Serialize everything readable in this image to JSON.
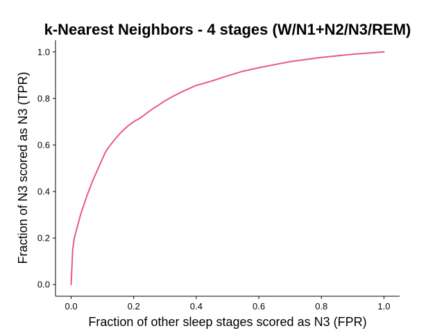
{
  "chart_data": {
    "type": "line",
    "title": "k-Nearest Neighbors - 4 stages (W/N1+N2/N3/REM)",
    "xlabel": "Fraction of other sleep stages scored as N3 (FPR)",
    "ylabel": "Fraction of N3 scored as N3 (TPR)",
    "xlim": [
      -0.05,
      1.05
    ],
    "ylim": [
      -0.05,
      1.05
    ],
    "xticks": [
      0.0,
      0.2,
      0.4,
      0.6,
      0.8,
      1.0
    ],
    "yticks": [
      0.0,
      0.2,
      0.4,
      0.6,
      0.8,
      1.0
    ],
    "xtick_labels": [
      "0.0",
      "0.2",
      "0.4",
      "0.6",
      "0.8",
      "1.0"
    ],
    "ytick_labels": [
      "0.0",
      "0.2",
      "0.4",
      "0.6",
      "0.8",
      "1.0"
    ],
    "grid": false,
    "series": [
      {
        "color": "#e8578c",
        "x": [
          0.0,
          0.005,
          0.01,
          0.02,
          0.03,
          0.05,
          0.07,
          0.08,
          0.09,
          0.1,
          0.11,
          0.12,
          0.14,
          0.16,
          0.18,
          0.2,
          0.22,
          0.24,
          0.26,
          0.28,
          0.3,
          0.33,
          0.36,
          0.4,
          0.42,
          0.45,
          0.5,
          0.55,
          0.6,
          0.65,
          0.7,
          0.75,
          0.8,
          0.85,
          0.9,
          0.95,
          1.0
        ],
        "y": [
          0.0,
          0.15,
          0.2,
          0.25,
          0.3,
          0.38,
          0.45,
          0.48,
          0.51,
          0.54,
          0.57,
          0.59,
          0.625,
          0.655,
          0.68,
          0.7,
          0.715,
          0.735,
          0.755,
          0.772,
          0.79,
          0.812,
          0.832,
          0.856,
          0.863,
          0.875,
          0.897,
          0.917,
          0.932,
          0.945,
          0.958,
          0.967,
          0.976,
          0.983,
          0.99,
          0.995,
          1.0
        ]
      }
    ]
  }
}
